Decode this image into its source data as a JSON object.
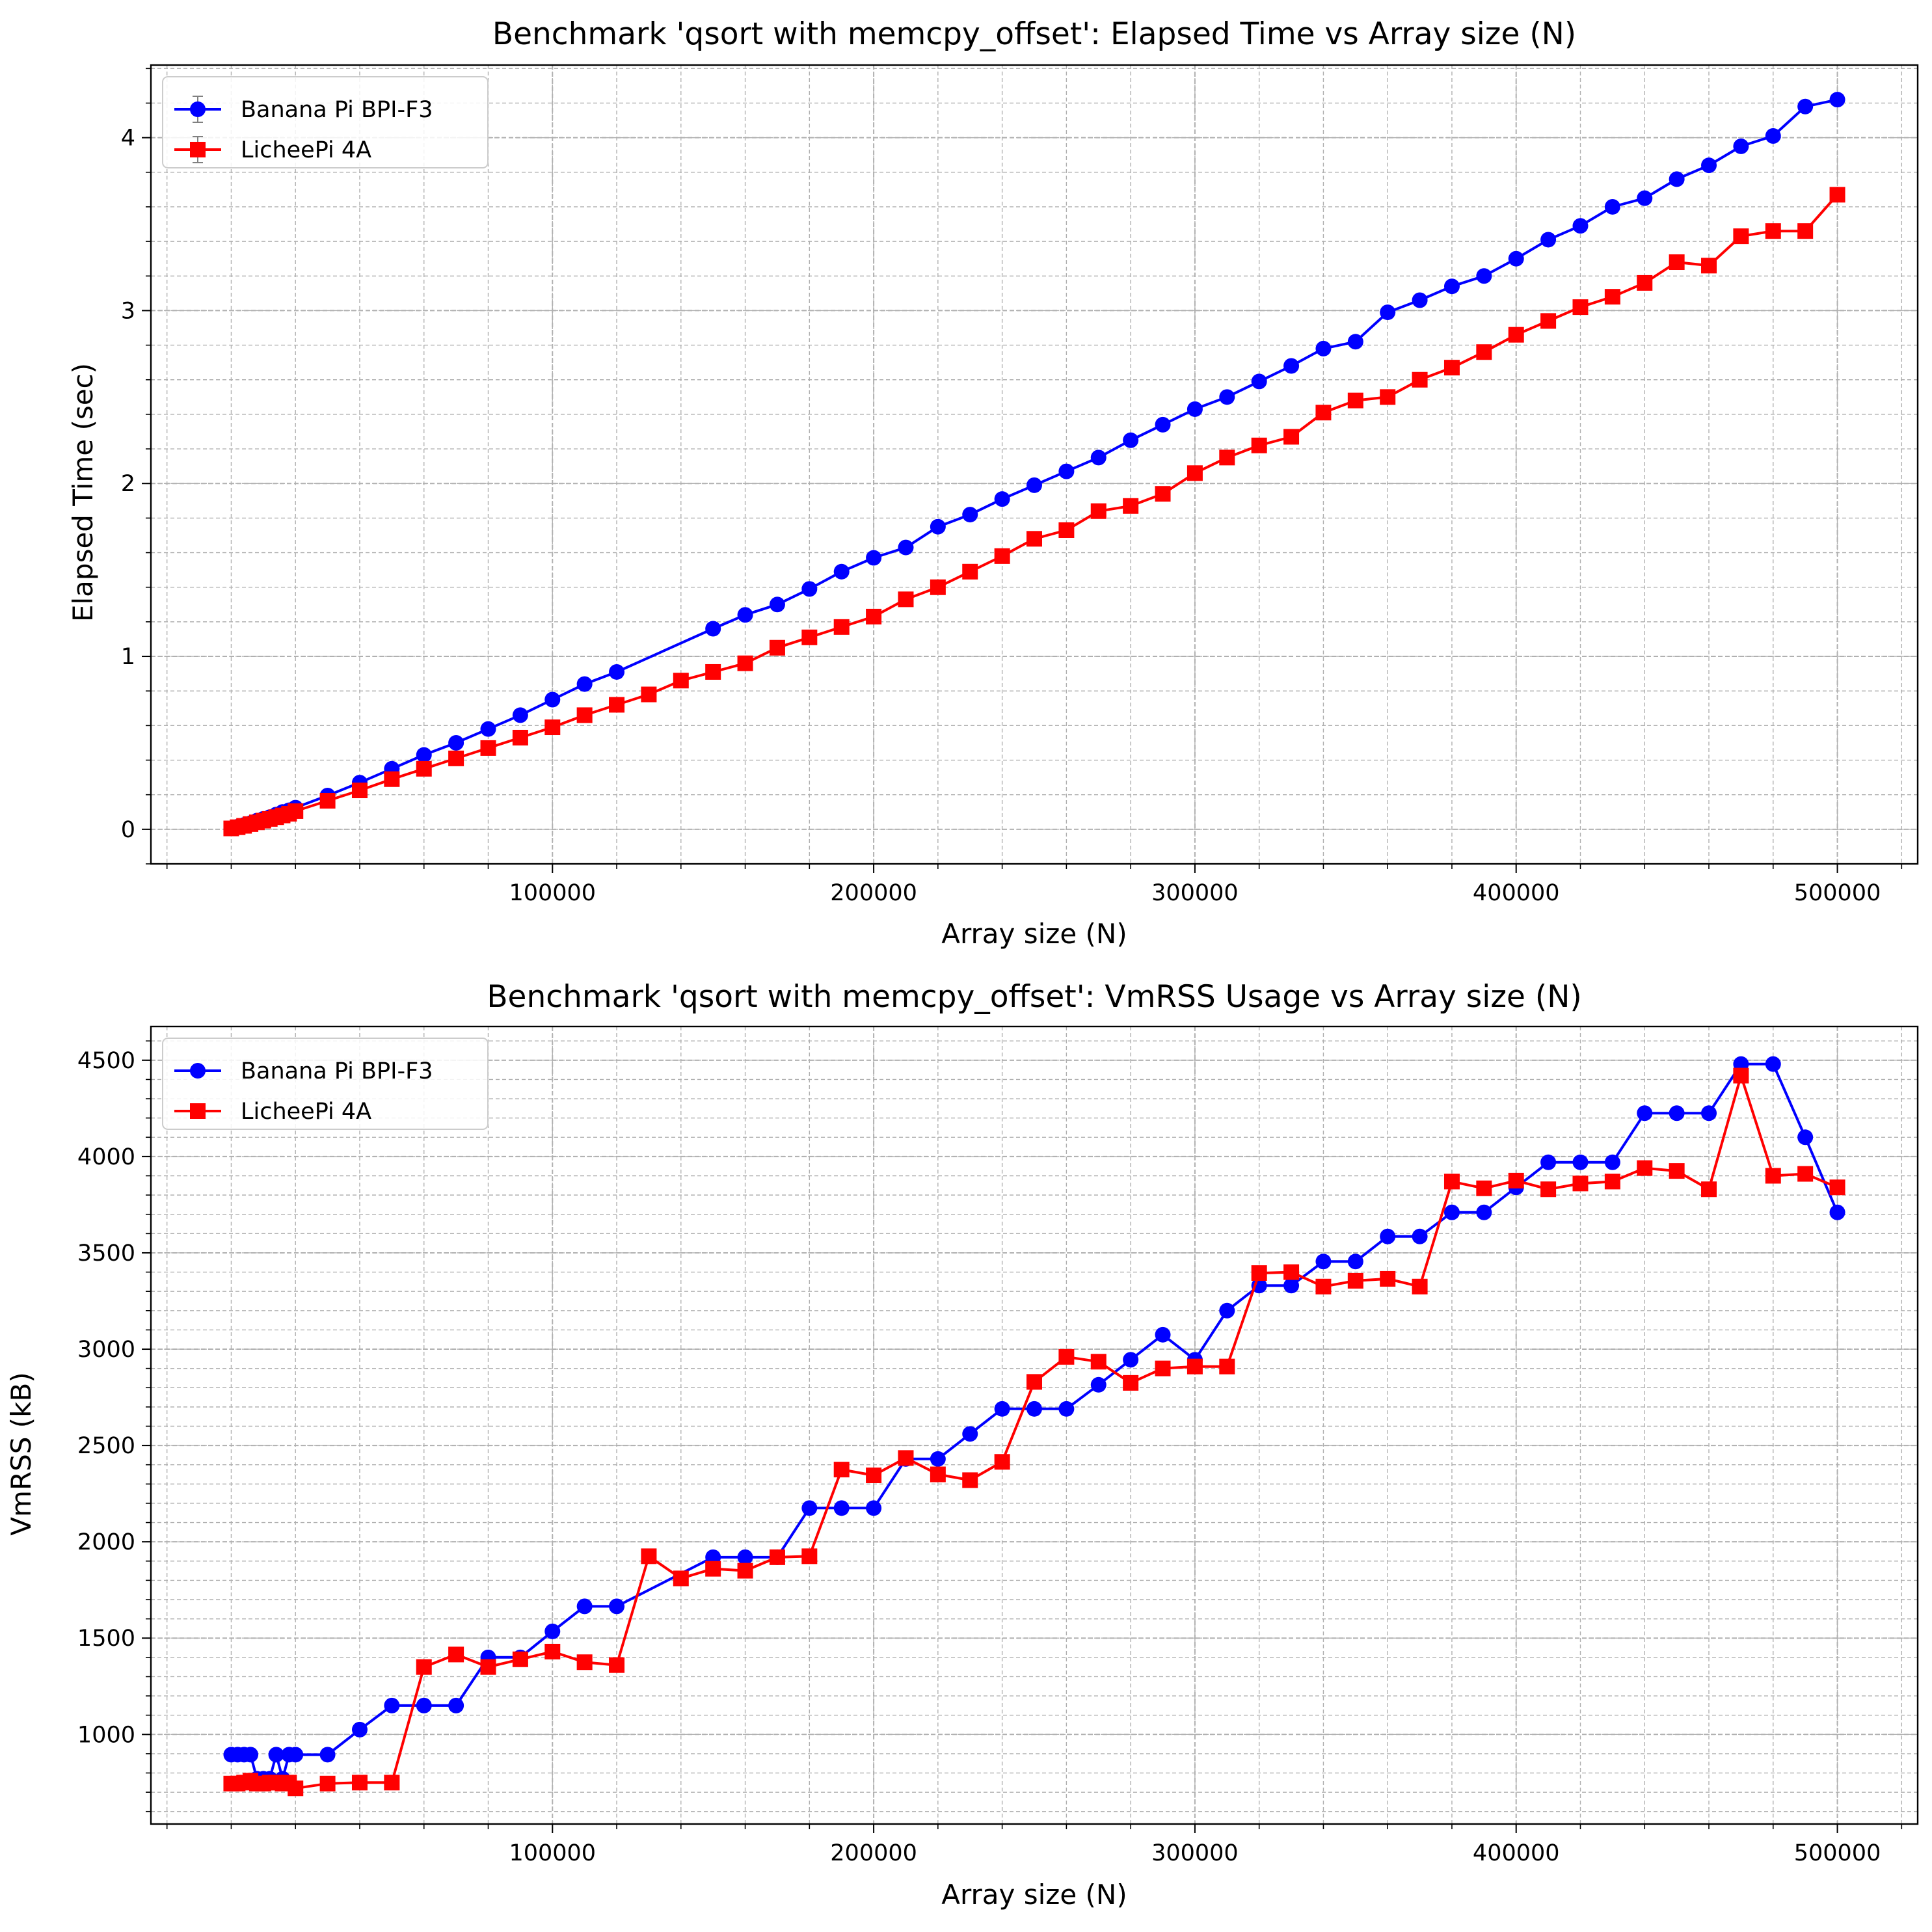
{
  "colors": {
    "blue": "#0000ff",
    "red": "#ff0000",
    "grid": "#b0b0b0",
    "errbar": "#808080"
  },
  "chart_data": [
    {
      "type": "line",
      "title": "Benchmark 'qsort with memcpy_offset': Elapsed Time vs Array size (N)",
      "xlabel": "Array size (N)",
      "ylabel": "Elapsed Time (sec)",
      "xlim": [
        -25000,
        525000
      ],
      "ylim": [
        -0.2,
        4.42
      ],
      "x_ticks": [
        100000,
        200000,
        300000,
        400000,
        500000
      ],
      "x_tick_labels": [
        "100000",
        "200000",
        "300000",
        "400000",
        "500000"
      ],
      "y_ticks": [
        0,
        1,
        2,
        3,
        4
      ],
      "y_tick_labels": [
        "0",
        "1",
        "2",
        "3",
        "4"
      ],
      "grid": true,
      "legend_position": "upper-left",
      "legend_errorbars": true,
      "series": [
        {
          "name": "Banana Pi BPI-F3",
          "color": "#0000ff",
          "marker": "circle",
          "x": [
            0,
            2000,
            4000,
            6000,
            8000,
            10000,
            12000,
            14000,
            16000,
            18000,
            20000,
            30000,
            40000,
            50000,
            60000,
            70000,
            80000,
            90000,
            100000,
            110000,
            120000,
            150000,
            160000,
            170000,
            180000,
            190000,
            200000,
            210000,
            220000,
            230000,
            240000,
            250000,
            260000,
            270000,
            280000,
            290000,
            300000,
            310000,
            320000,
            330000,
            340000,
            350000,
            360000,
            370000,
            380000,
            390000,
            400000,
            410000,
            420000,
            430000,
            440000,
            450000,
            460000,
            470000,
            480000,
            490000,
            500000
          ],
          "y": [
            0.005,
            0.015,
            0.025,
            0.035,
            0.05,
            0.06,
            0.07,
            0.085,
            0.1,
            0.11,
            0.125,
            0.195,
            0.27,
            0.35,
            0.43,
            0.5,
            0.58,
            0.66,
            0.75,
            0.84,
            0.91,
            1.16,
            1.24,
            1.3,
            1.39,
            1.49,
            1.57,
            1.63,
            1.75,
            1.82,
            1.91,
            1.99,
            2.07,
            2.15,
            2.25,
            2.34,
            2.43,
            2.5,
            2.59,
            2.68,
            2.78,
            2.82,
            2.99,
            3.06,
            3.14,
            3.2,
            3.3,
            3.41,
            3.49,
            3.6,
            3.65,
            3.76,
            3.84,
            3.95,
            4.01,
            4.18,
            4.22
          ]
        },
        {
          "name": "LicheePi 4A",
          "color": "#ff0000",
          "marker": "square",
          "x": [
            0,
            2000,
            4000,
            6000,
            8000,
            10000,
            12000,
            14000,
            16000,
            18000,
            20000,
            30000,
            40000,
            50000,
            60000,
            70000,
            80000,
            90000,
            100000,
            110000,
            120000,
            130000,
            140000,
            150000,
            160000,
            170000,
            180000,
            190000,
            200000,
            210000,
            220000,
            230000,
            240000,
            250000,
            260000,
            270000,
            280000,
            290000,
            300000,
            310000,
            320000,
            330000,
            340000,
            350000,
            360000,
            370000,
            380000,
            390000,
            400000,
            410000,
            420000,
            430000,
            440000,
            450000,
            460000,
            470000,
            480000,
            490000,
            500000
          ],
          "y": [
            0.005,
            0.012,
            0.02,
            0.03,
            0.04,
            0.05,
            0.06,
            0.07,
            0.08,
            0.09,
            0.105,
            0.165,
            0.225,
            0.29,
            0.35,
            0.41,
            0.47,
            0.53,
            0.59,
            0.66,
            0.72,
            0.78,
            0.86,
            0.91,
            0.96,
            1.05,
            1.11,
            1.17,
            1.23,
            1.33,
            1.4,
            1.49,
            1.58,
            1.68,
            1.73,
            1.84,
            1.87,
            1.94,
            2.06,
            2.15,
            2.22,
            2.27,
            2.41,
            2.48,
            2.5,
            2.6,
            2.67,
            2.76,
            2.86,
            2.94,
            3.02,
            3.08,
            3.16,
            3.28,
            3.26,
            3.43,
            3.46,
            3.46,
            3.67
          ]
        }
      ]
    },
    {
      "type": "line",
      "title": "Benchmark 'qsort with memcpy_offset': VmRSS Usage vs Array size (N)",
      "xlabel": "Array size (N)",
      "ylabel": "VmRSS (kB)",
      "xlim": [
        -25000,
        525000
      ],
      "ylim": [
        535,
        4675
      ],
      "x_ticks": [
        100000,
        200000,
        300000,
        400000,
        500000
      ],
      "x_tick_labels": [
        "100000",
        "200000",
        "300000",
        "400000",
        "500000"
      ],
      "y_ticks": [
        1000,
        1500,
        2000,
        2500,
        3000,
        3500,
        4000,
        4500
      ],
      "y_tick_labels": [
        "1000",
        "1500",
        "2000",
        "2500",
        "3000",
        "3500",
        "4000",
        "4500"
      ],
      "grid": true,
      "legend_position": "upper-left",
      "legend_errorbars": false,
      "series": [
        {
          "name": "Banana Pi BPI-F3",
          "color": "#0000ff",
          "marker": "circle",
          "x": [
            0,
            2000,
            4000,
            6000,
            8000,
            10000,
            12000,
            14000,
            16000,
            18000,
            20000,
            30000,
            40000,
            50000,
            60000,
            70000,
            80000,
            90000,
            100000,
            110000,
            120000,
            150000,
            160000,
            170000,
            180000,
            190000,
            200000,
            210000,
            220000,
            230000,
            240000,
            250000,
            260000,
            270000,
            280000,
            290000,
            300000,
            310000,
            320000,
            330000,
            340000,
            350000,
            360000,
            370000,
            380000,
            390000,
            400000,
            410000,
            420000,
            430000,
            440000,
            450000,
            460000,
            470000,
            480000,
            490000,
            500000
          ],
          "y": [
            895,
            895,
            895,
            895,
            770,
            770,
            770,
            895,
            770,
            895,
            895,
            895,
            1025,
            1150,
            1150,
            1150,
            1400,
            1400,
            1535,
            1665,
            1665,
            1920,
            1920,
            1920,
            2175,
            2175,
            2175,
            2430,
            2430,
            2560,
            2690,
            2690,
            2690,
            2815,
            2945,
            3075,
            2945,
            3200,
            3330,
            3330,
            3455,
            3455,
            3585,
            3585,
            3710,
            3710,
            3840,
            3970,
            3970,
            3970,
            4225,
            4225,
            4225,
            4480,
            4480,
            4100,
            3710
          ]
        },
        {
          "name": "LicheePi 4A",
          "color": "#ff0000",
          "marker": "square",
          "x": [
            0,
            2000,
            4000,
            6000,
            8000,
            10000,
            12000,
            14000,
            16000,
            18000,
            20000,
            30000,
            40000,
            50000,
            60000,
            70000,
            80000,
            90000,
            100000,
            110000,
            120000,
            130000,
            140000,
            150000,
            160000,
            170000,
            180000,
            190000,
            200000,
            210000,
            220000,
            230000,
            240000,
            250000,
            260000,
            270000,
            280000,
            290000,
            300000,
            310000,
            320000,
            330000,
            340000,
            350000,
            360000,
            370000,
            380000,
            390000,
            400000,
            410000,
            420000,
            430000,
            440000,
            450000,
            460000,
            470000,
            480000,
            490000,
            500000
          ],
          "y": [
            745,
            745,
            750,
            760,
            745,
            745,
            750,
            750,
            745,
            750,
            720,
            745,
            750,
            750,
            1350,
            1415,
            1350,
            1390,
            1430,
            1375,
            1360,
            1925,
            1810,
            1860,
            1850,
            1920,
            1925,
            2375,
            2345,
            2435,
            2350,
            2320,
            2415,
            2830,
            2960,
            2935,
            2825,
            2900,
            2910,
            2910,
            3395,
            3400,
            3325,
            3355,
            3365,
            3325,
            3870,
            3835,
            3875,
            3830,
            3860,
            3870,
            3940,
            3925,
            3830,
            4420,
            3900,
            3910,
            3840
          ]
        }
      ]
    }
  ]
}
